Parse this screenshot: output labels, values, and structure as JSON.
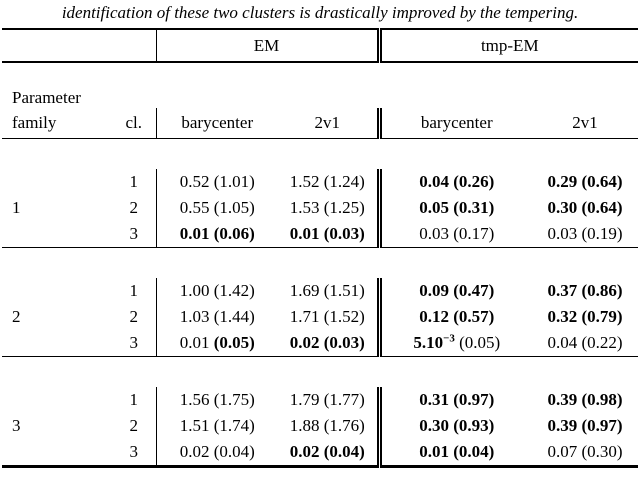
{
  "caption": "identification of these two clusters is drastically improved by the tempering.",
  "table": {
    "group_headers": {
      "em": "EM",
      "tmp_em": "tmp-EM"
    },
    "col_headers": {
      "param_line1": "Parameter",
      "param_line2": "family",
      "cl": "cl.",
      "em_barycenter": "barycenter",
      "em_2v1": "2v1",
      "tmp_barycenter": "barycenter",
      "tmp_2v1": "2v1"
    },
    "column_keys": [
      "em-barycenter",
      "em-2v1",
      "tmp-barycenter",
      "tmp-2v1"
    ],
    "families": [
      {
        "label": "1",
        "rows": [
          {
            "cl": "1",
            "cells": [
              {
                "v": "0.52",
                "vb": false,
                "p": "(1.01)",
                "pb": false
              },
              {
                "v": "1.52",
                "vb": false,
                "p": "(1.24)",
                "pb": false
              },
              {
                "v": "0.04",
                "vb": true,
                "p": "(0.26)",
                "pb": true
              },
              {
                "v": "0.29",
                "vb": true,
                "p": "(0.64)",
                "pb": true
              }
            ]
          },
          {
            "cl": "2",
            "cells": [
              {
                "v": "0.55",
                "vb": false,
                "p": "(1.05)",
                "pb": false
              },
              {
                "v": "1.53",
                "vb": false,
                "p": "(1.25)",
                "pb": false
              },
              {
                "v": "0.05",
                "vb": true,
                "p": "(0.31)",
                "pb": true
              },
              {
                "v": "0.30",
                "vb": true,
                "p": "(0.64)",
                "pb": true
              }
            ]
          },
          {
            "cl": "3",
            "cells": [
              {
                "v": "0.01",
                "vb": true,
                "p": "(0.06)",
                "pb": true
              },
              {
                "v": "0.01",
                "vb": true,
                "p": "(0.03)",
                "pb": true
              },
              {
                "v": "0.03",
                "vb": false,
                "p": "(0.17)",
                "pb": false
              },
              {
                "v": "0.03",
                "vb": false,
                "p": "(0.19)",
                "pb": false
              }
            ]
          }
        ]
      },
      {
        "label": "2",
        "rows": [
          {
            "cl": "1",
            "cells": [
              {
                "v": "1.00",
                "vb": false,
                "p": "(1.42)",
                "pb": false
              },
              {
                "v": "1.69",
                "vb": false,
                "p": "(1.51)",
                "pb": false
              },
              {
                "v": "0.09",
                "vb": true,
                "p": "(0.47)",
                "pb": true
              },
              {
                "v": "0.37",
                "vb": true,
                "p": "(0.86)",
                "pb": true
              }
            ]
          },
          {
            "cl": "2",
            "cells": [
              {
                "v": "1.03",
                "vb": false,
                "p": "(1.44)",
                "pb": false
              },
              {
                "v": "1.71",
                "vb": false,
                "p": "(1.52)",
                "pb": false
              },
              {
                "v": "0.12",
                "vb": true,
                "p": "(0.57)",
                "pb": true
              },
              {
                "v": "0.32",
                "vb": true,
                "p": "(0.79)",
                "pb": true
              }
            ]
          },
          {
            "cl": "3",
            "cells": [
              {
                "v": "0.01",
                "vb": false,
                "p": "(0.05)",
                "pb": true
              },
              {
                "v": "0.02",
                "vb": true,
                "p": "(0.03)",
                "pb": true
              },
              {
                "v": "5.10",
                "sup": "−3",
                "vb": true,
                "p": "(0.05)",
                "pb": false
              },
              {
                "v": "0.04",
                "vb": false,
                "p": "(0.22)",
                "pb": false
              }
            ]
          }
        ]
      },
      {
        "label": "3",
        "rows": [
          {
            "cl": "1",
            "cells": [
              {
                "v": "1.56",
                "vb": false,
                "p": "(1.75)",
                "pb": false
              },
              {
                "v": "1.79",
                "vb": false,
                "p": "(1.77)",
                "pb": false
              },
              {
                "v": "0.31",
                "vb": true,
                "p": "(0.97)",
                "pb": true
              },
              {
                "v": "0.39",
                "vb": true,
                "p": "(0.98)",
                "pb": true
              }
            ]
          },
          {
            "cl": "2",
            "cells": [
              {
                "v": "1.51",
                "vb": false,
                "p": "(1.74)",
                "pb": false
              },
              {
                "v": "1.88",
                "vb": false,
                "p": "(1.76)",
                "pb": false
              },
              {
                "v": "0.30",
                "vb": true,
                "p": "(0.93)",
                "pb": true
              },
              {
                "v": "0.39",
                "vb": true,
                "p": "(0.97)",
                "pb": true
              }
            ]
          },
          {
            "cl": "3",
            "cells": [
              {
                "v": "0.02",
                "vb": false,
                "p": "(0.04)",
                "pb": false
              },
              {
                "v": "0.02",
                "vb": true,
                "p": "(0.04)",
                "pb": true
              },
              {
                "v": "0.01",
                "vb": true,
                "p": "(0.04)",
                "pb": true
              },
              {
                "v": "0.07",
                "vb": false,
                "p": "(0.30)",
                "pb": false
              }
            ]
          }
        ]
      }
    ]
  },
  "colors": {
    "text": "#000000",
    "background": "#ffffff",
    "rule": "#000000"
  }
}
